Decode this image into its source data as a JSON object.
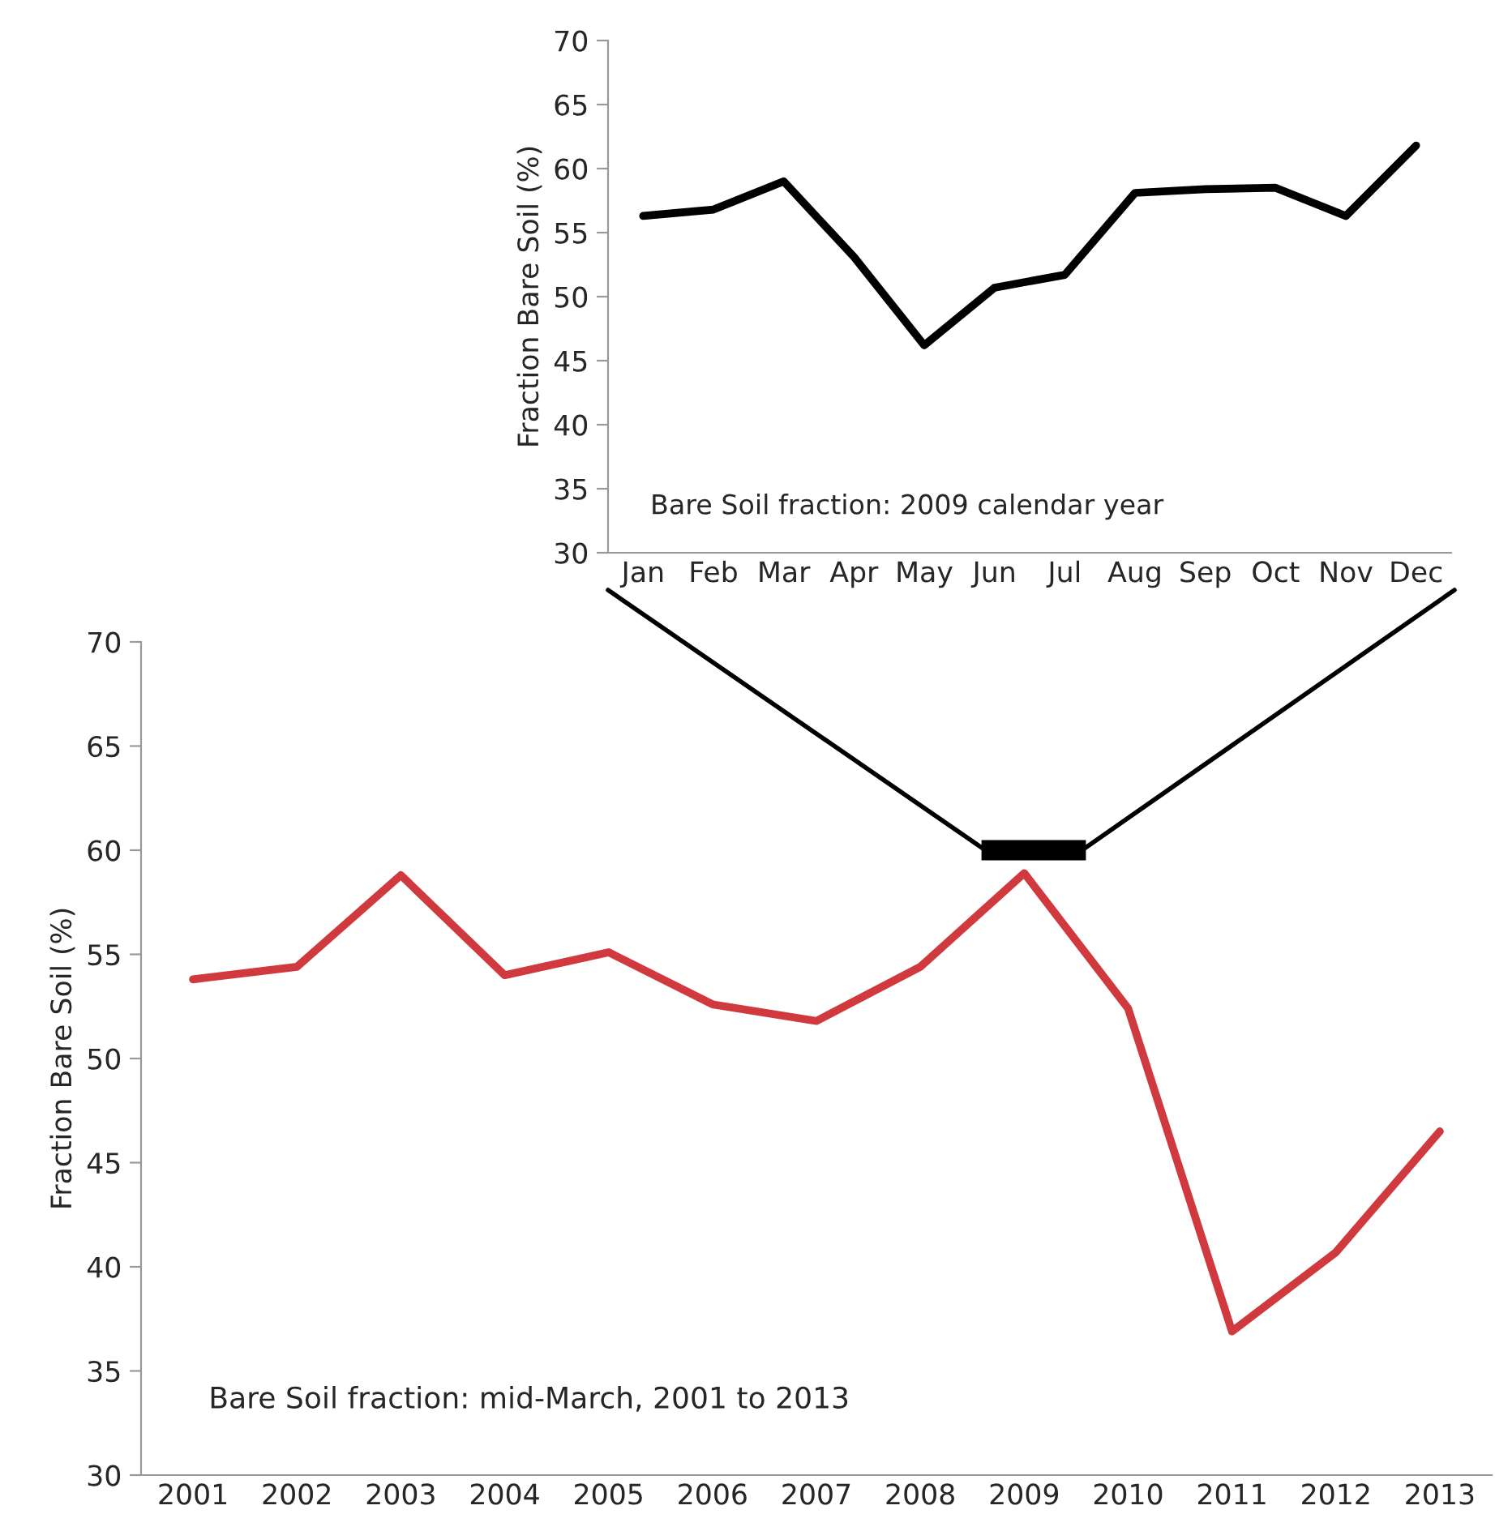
{
  "chart_data": [
    {
      "type": "line",
      "ylabel": "Fraction Bare Soil (%)",
      "annotations": [
        "Bare Soil fraction: 2009 calendar year"
      ],
      "categories": [
        "Jan",
        "Feb",
        "Mar",
        "Apr",
        "May",
        "Jun",
        "Jul",
        "Aug",
        "Sep",
        "Oct",
        "Nov",
        "Dec"
      ],
      "series": [
        {
          "color": "#000000",
          "values": [
            56.3,
            56.8,
            59.0,
            53.1,
            46.2,
            50.7,
            51.7,
            58.1,
            58.4,
            58.5,
            56.3,
            61.8
          ]
        }
      ],
      "ylim": [
        30,
        70
      ],
      "yticks": [
        30,
        35,
        40,
        45,
        50,
        55,
        60,
        65,
        70
      ],
      "grid": false,
      "legend": false
    },
    {
      "type": "line",
      "ylabel": "Fraction Bare Soil (%)",
      "annotations": [
        "Bare Soil fraction: mid-March, 2001 to 2013"
      ],
      "categories": [
        "2001",
        "2002",
        "2003",
        "2004",
        "2005",
        "2006",
        "2007",
        "2008",
        "2009",
        "2010",
        "2011",
        "2012",
        "2013"
      ],
      "series": [
        {
          "color": "#d0393e",
          "values": [
            53.8,
            54.4,
            58.8,
            54.0,
            55.1,
            52.6,
            51.8,
            54.4,
            58.9,
            52.4,
            36.9,
            40.7,
            46.5
          ]
        }
      ],
      "ylim": [
        30,
        70
      ],
      "yticks": [
        30,
        35,
        40,
        45,
        50,
        55,
        60,
        65,
        70
      ],
      "grid": false,
      "legend": false
    }
  ]
}
